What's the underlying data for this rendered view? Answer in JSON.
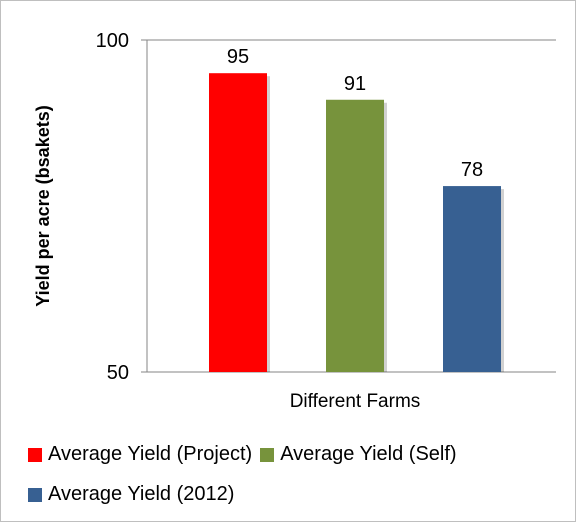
{
  "chart_data": {
    "type": "bar",
    "title": "",
    "xlabel": "Different Farms",
    "ylabel": "Yield per acre (bsakets)",
    "ylim": [
      50,
      100
    ],
    "yticks": [
      "50",
      "100"
    ],
    "grid": true,
    "legend_position": "bottom",
    "series": [
      {
        "name": "Average Yield (Project)",
        "value": 95,
        "label": "95",
        "color": "#ff0000"
      },
      {
        "name": "Average Yield (Self)",
        "value": 91,
        "label": "91",
        "color": "#77933c"
      },
      {
        "name": "Average Yield (2012)",
        "value": 78,
        "label": "78",
        "color": "#376092"
      }
    ]
  }
}
